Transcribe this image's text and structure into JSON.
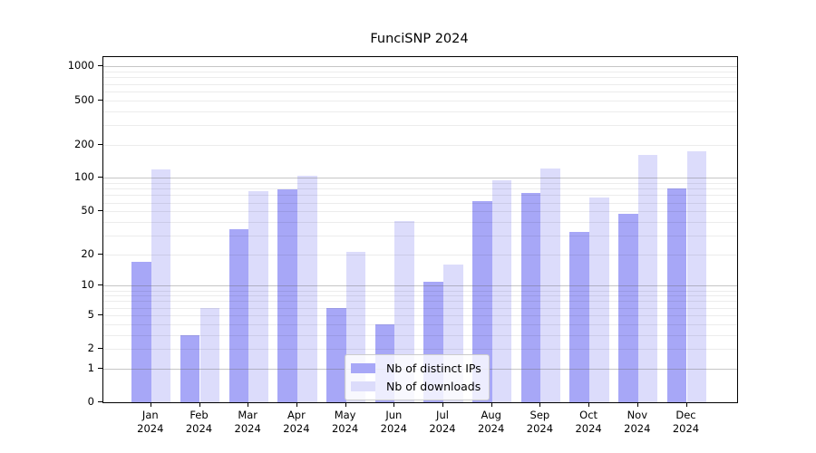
{
  "chart_data": {
    "type": "bar",
    "title": "FunciSNP 2024",
    "categories": [
      "Jan",
      "Feb",
      "Mar",
      "Apr",
      "May",
      "Jun",
      "Jul",
      "Aug",
      "Sep",
      "Oct",
      "Nov",
      "Dec"
    ],
    "x_year_label": "2024",
    "series": [
      {
        "name": "Nb of distinct IPs",
        "color": "#a7a7f7",
        "values": [
          17,
          3,
          34,
          79,
          6,
          4,
          11,
          62,
          73,
          32,
          47,
          81
        ]
      },
      {
        "name": "Nb of downloads",
        "color": "#dcdcfb",
        "values": [
          120,
          6,
          76,
          105,
          21,
          41,
          16,
          96,
          122,
          67,
          160,
          175
        ]
      }
    ],
    "yticks": [
      0,
      1,
      2,
      5,
      10,
      20,
      50,
      100,
      200,
      500,
      1000
    ],
    "y_scale": "log10(value+1)",
    "ylim": [
      0,
      1230
    ],
    "grid": true,
    "legend_position": "lower center"
  },
  "colors": {
    "spine": "#000000",
    "grid_major": "#6a6a6a",
    "grid_minor": "#e8e8e8",
    "background": "#ffffff"
  }
}
